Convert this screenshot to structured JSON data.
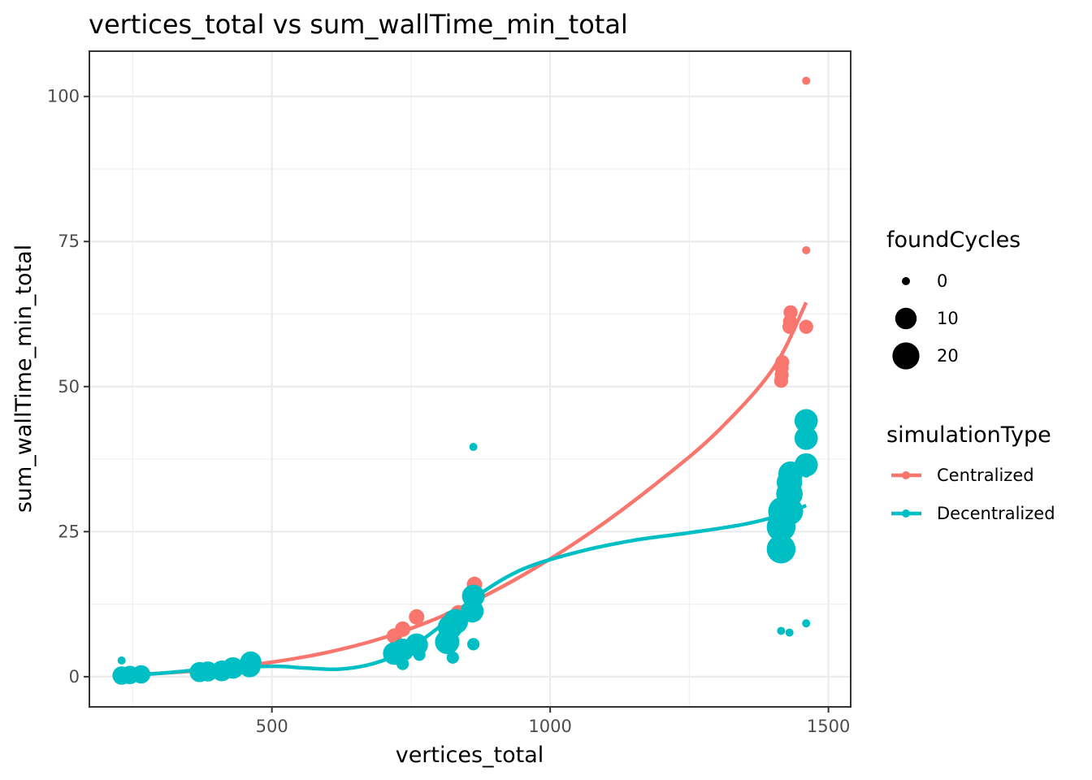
{
  "chart_data": {
    "type": "scatter",
    "title": "vertices_total  vs  sum_wallTime_min_total",
    "xlabel": "vertices_total",
    "ylabel": "sum_wallTime_min_total",
    "xlim": [
      172,
      1540
    ],
    "ylim": [
      -5.2,
      107.8
    ],
    "x_ticks": [
      500,
      1000,
      1500
    ],
    "x_tick_labels": [
      "500",
      "1000",
      "1500"
    ],
    "y_ticks": [
      0,
      25,
      50,
      75,
      100
    ],
    "y_tick_labels": [
      "0",
      "25",
      "50",
      "75",
      "100"
    ],
    "grid": true,
    "legend_position": "right",
    "size_legend": {
      "title": "foundCycles",
      "entries": [
        {
          "label": "0",
          "value": 0
        },
        {
          "label": "10",
          "value": 10
        },
        {
          "label": "20",
          "value": 20
        }
      ]
    },
    "color_legend": {
      "title": "simulationType",
      "entries": [
        "Centralized",
        "Decentralized"
      ]
    },
    "series": [
      {
        "name": "Centralized",
        "color": "#F8766D",
        "points": [
          {
            "x": 230,
            "y": 0.3,
            "size": 1
          },
          {
            "x": 245,
            "y": 0.4,
            "size": 1
          },
          {
            "x": 265,
            "y": 0.5,
            "size": 1
          },
          {
            "x": 370,
            "y": 0.9,
            "size": 2
          },
          {
            "x": 385,
            "y": 1.2,
            "size": 2
          },
          {
            "x": 410,
            "y": 1.4,
            "size": 2
          },
          {
            "x": 430,
            "y": 1.8,
            "size": 2
          },
          {
            "x": 460,
            "y": 2.5,
            "size": 3
          },
          {
            "x": 720,
            "y": 7.0,
            "size": 3
          },
          {
            "x": 735,
            "y": 8.2,
            "size": 3
          },
          {
            "x": 760,
            "y": 10.3,
            "size": 3
          },
          {
            "x": 820,
            "y": 10.0,
            "size": 3
          },
          {
            "x": 835,
            "y": 11.0,
            "size": 3
          },
          {
            "x": 860,
            "y": 13.5,
            "size": 3
          },
          {
            "x": 862,
            "y": 14.8,
            "size": 3
          },
          {
            "x": 864,
            "y": 15.9,
            "size": 3
          },
          {
            "x": 1415,
            "y": 51.0,
            "size": 2
          },
          {
            "x": 1416,
            "y": 52.0,
            "size": 2
          },
          {
            "x": 1416,
            "y": 53.2,
            "size": 2
          },
          {
            "x": 1417,
            "y": 54.2,
            "size": 2
          },
          {
            "x": 1430,
            "y": 60.3,
            "size": 2
          },
          {
            "x": 1431,
            "y": 61.2,
            "size": 2
          },
          {
            "x": 1432,
            "y": 62.8,
            "size": 2
          },
          {
            "x": 1460,
            "y": 60.3,
            "size": 2
          },
          {
            "x": 1460,
            "y": 73.5,
            "size": 0
          },
          {
            "x": 1460,
            "y": 102.7,
            "size": 0
          }
        ],
        "smooth": [
          {
            "x": 230,
            "y": 0.3
          },
          {
            "x": 300,
            "y": 0.6
          },
          {
            "x": 400,
            "y": 1.3
          },
          {
            "x": 500,
            "y": 2.5
          },
          {
            "x": 600,
            "y": 4.2
          },
          {
            "x": 700,
            "y": 6.7
          },
          {
            "x": 800,
            "y": 10.2
          },
          {
            "x": 900,
            "y": 14.8
          },
          {
            "x": 1000,
            "y": 20.3
          },
          {
            "x": 1100,
            "y": 26.7
          },
          {
            "x": 1200,
            "y": 34.0
          },
          {
            "x": 1300,
            "y": 42.2
          },
          {
            "x": 1400,
            "y": 53.0
          },
          {
            "x": 1460,
            "y": 64.5
          }
        ]
      },
      {
        "name": "Decentralized",
        "color": "#00BFC4",
        "points": [
          {
            "x": 230,
            "y": 2.8,
            "size": 0
          },
          {
            "x": 230,
            "y": 0.2,
            "size": 6
          },
          {
            "x": 245,
            "y": 0.3,
            "size": 6
          },
          {
            "x": 265,
            "y": 0.4,
            "size": 6
          },
          {
            "x": 370,
            "y": 0.8,
            "size": 8
          },
          {
            "x": 385,
            "y": 0.9,
            "size": 8
          },
          {
            "x": 410,
            "y": 1.0,
            "size": 9
          },
          {
            "x": 430,
            "y": 1.5,
            "size": 10
          },
          {
            "x": 460,
            "y": 1.8,
            "size": 11
          },
          {
            "x": 462,
            "y": 2.5,
            "size": 10
          },
          {
            "x": 720,
            "y": 4.0,
            "size": 12
          },
          {
            "x": 735,
            "y": 4.6,
            "size": 12
          },
          {
            "x": 735,
            "y": 2.2,
            "size": 1
          },
          {
            "x": 760,
            "y": 5.5,
            "size": 12
          },
          {
            "x": 765,
            "y": 3.8,
            "size": 1
          },
          {
            "x": 815,
            "y": 6.0,
            "size": 15
          },
          {
            "x": 820,
            "y": 8.5,
            "size": 15
          },
          {
            "x": 830,
            "y": 9.5,
            "size": 16
          },
          {
            "x": 825,
            "y": 3.3,
            "size": 1
          },
          {
            "x": 860,
            "y": 11.3,
            "size": 12
          },
          {
            "x": 862,
            "y": 13.9,
            "size": 12
          },
          {
            "x": 862,
            "y": 5.6,
            "size": 1
          },
          {
            "x": 862,
            "y": 39.6,
            "size": 0
          },
          {
            "x": 1415,
            "y": 22.0,
            "size": 24
          },
          {
            "x": 1415,
            "y": 25.8,
            "size": 24
          },
          {
            "x": 1418,
            "y": 28.5,
            "size": 25
          },
          {
            "x": 1430,
            "y": 28.5,
            "size": 21
          },
          {
            "x": 1430,
            "y": 31.5,
            "size": 19
          },
          {
            "x": 1430,
            "y": 33.5,
            "size": 17
          },
          {
            "x": 1432,
            "y": 35.0,
            "size": 15
          },
          {
            "x": 1460,
            "y": 36.5,
            "size": 13
          },
          {
            "x": 1460,
            "y": 41.1,
            "size": 13
          },
          {
            "x": 1460,
            "y": 44.1,
            "size": 13
          },
          {
            "x": 1460,
            "y": 35.0,
            "size": 0
          },
          {
            "x": 1415,
            "y": 7.9,
            "size": 0
          },
          {
            "x": 1430,
            "y": 7.6,
            "size": 0
          },
          {
            "x": 1460,
            "y": 9.2,
            "size": 0
          }
        ],
        "smooth": [
          {
            "x": 230,
            "y": 0.2
          },
          {
            "x": 300,
            "y": 0.6
          },
          {
            "x": 400,
            "y": 1.4
          },
          {
            "x": 500,
            "y": 1.8
          },
          {
            "x": 560,
            "y": 1.5
          },
          {
            "x": 620,
            "y": 1.3
          },
          {
            "x": 680,
            "y": 2.2
          },
          {
            "x": 740,
            "y": 4.5
          },
          {
            "x": 800,
            "y": 8.5
          },
          {
            "x": 870,
            "y": 14.0
          },
          {
            "x": 950,
            "y": 18.5
          },
          {
            "x": 1050,
            "y": 21.5
          },
          {
            "x": 1150,
            "y": 23.5
          },
          {
            "x": 1250,
            "y": 24.8
          },
          {
            "x": 1350,
            "y": 26.3
          },
          {
            "x": 1420,
            "y": 28.0
          },
          {
            "x": 1460,
            "y": 29.5
          }
        ]
      }
    ]
  }
}
